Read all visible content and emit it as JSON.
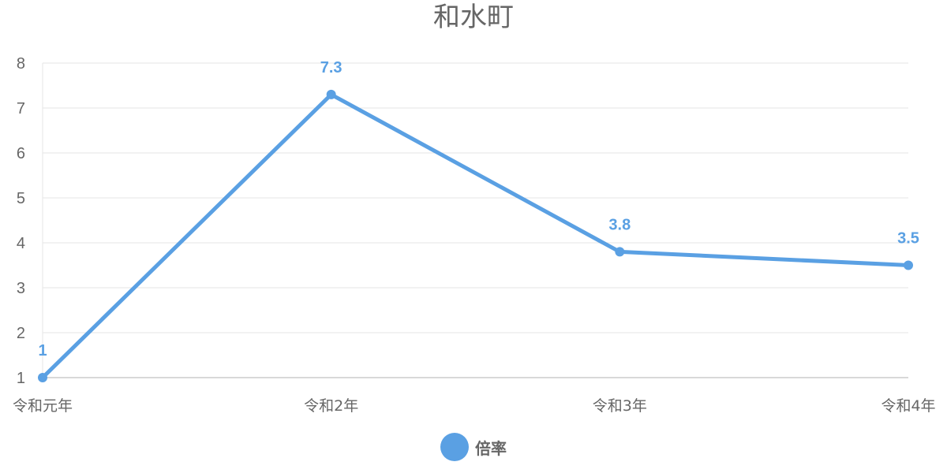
{
  "chart_data": {
    "type": "line",
    "title": "和水町",
    "categories": [
      "令和元年",
      "令和2年",
      "令和3年",
      "令和4年"
    ],
    "series": [
      {
        "name": "倍率",
        "values": [
          1,
          7.3,
          3.8,
          3.5
        ],
        "data_labels": [
          "1",
          "7.3",
          "3.8",
          "3.5"
        ],
        "color": "#5aa0e3"
      }
    ],
    "yticks": [
      "1",
      "2",
      "3",
      "4",
      "5",
      "6",
      "7",
      "8"
    ],
    "ylim": [
      1,
      8
    ],
    "grid": true,
    "legend_position": "bottom"
  },
  "colors": {
    "series": "#5aa0e3",
    "text": "#666666",
    "grid": "#e5e5e5",
    "axis": "#cccccc"
  }
}
